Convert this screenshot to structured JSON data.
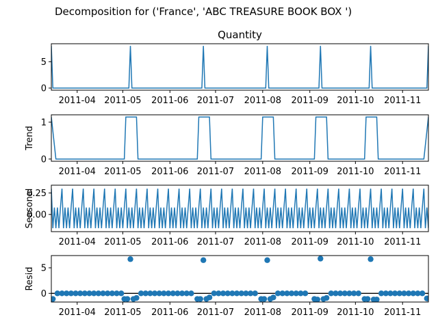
{
  "suptitle": "Decomposition for ('France', 'ABC TREASURE BOOK BOX ')",
  "colors": {
    "series": "#1f77b4",
    "axis": "#000000",
    "zero_line": "#000000"
  },
  "chart_data": [
    {
      "type": "line",
      "title": "Quantity",
      "ylabel": "",
      "xlim": [
        "2011-03-15",
        "2011-11-18"
      ],
      "ylim": [
        -0.4,
        8.4
      ],
      "yticks": [
        0,
        5
      ],
      "xticks": [
        "2011-04-01",
        "2011-05-01",
        "2011-06-01",
        "2011-07-01",
        "2011-08-01",
        "2011-09-01",
        "2011-10-01",
        "2011-11-01"
      ],
      "xtick_labels": [
        "2011-04",
        "2011-05",
        "2011-06",
        "2011-07",
        "2011-08",
        "2011-09",
        "2011-10",
        "2011-11"
      ],
      "spikes": [
        "2011-03-15",
        "2011-05-06",
        "2011-06-23",
        "2011-08-04",
        "2011-09-08",
        "2011-10-11",
        "2011-11-18"
      ],
      "spike_value": 8,
      "base_value": 0
    },
    {
      "type": "line",
      "title": "",
      "ylabel": "Trend",
      "xlim": [
        "2011-03-15",
        "2011-11-18"
      ],
      "ylim": [
        -0.06,
        1.2
      ],
      "yticks": [
        0,
        1
      ],
      "xticks": [
        "2011-04-01",
        "2011-05-01",
        "2011-06-01",
        "2011-07-01",
        "2011-08-01",
        "2011-09-01",
        "2011-10-01",
        "2011-11-01"
      ],
      "xtick_labels": [
        "2011-04",
        "2011-05",
        "2011-06",
        "2011-07",
        "2011-08",
        "2011-09",
        "2011-10",
        "2011-11"
      ],
      "plateaus": [
        [
          "2011-05-03",
          "2011-05-10"
        ],
        [
          "2011-06-20",
          "2011-06-27"
        ],
        [
          "2011-08-01",
          "2011-08-08"
        ],
        [
          "2011-09-05",
          "2011-09-12"
        ],
        [
          "2011-10-08",
          "2011-10-15"
        ]
      ],
      "plateau_value": 1.14,
      "base_value": 0,
      "edges": [
        [
          "2011-03-15",
          1.14
        ],
        [
          "2011-03-18",
          0
        ],
        [
          "2011-11-15",
          0
        ],
        [
          "2011-11-18",
          1.14
        ]
      ]
    },
    {
      "type": "line",
      "title": "",
      "ylabel": "Seasonal",
      "xlim": [
        "2011-03-15",
        "2011-11-18"
      ],
      "ylim": [
        -0.2,
        0.34
      ],
      "yticks": [
        0.25,
        0.0
      ],
      "ytick_labels": [
        "0.25",
        "0.00"
      ],
      "xticks": [
        "2011-04-01",
        "2011-05-01",
        "2011-06-01",
        "2011-07-01",
        "2011-08-01",
        "2011-09-01",
        "2011-10-01",
        "2011-11-01"
      ],
      "xtick_labels": [
        "2011-04",
        "2011-05",
        "2011-06",
        "2011-07",
        "2011-08",
        "2011-09",
        "2011-10",
        "2011-11"
      ],
      "start": "2011-03-15",
      "period_days": 7,
      "pattern": [
        0.3,
        -0.16,
        0.08,
        -0.16,
        0.08,
        -0.16,
        0.08
      ]
    },
    {
      "type": "scatter",
      "title": "",
      "ylabel": "Resid",
      "xlim": [
        "2011-03-15",
        "2011-11-18"
      ],
      "ylim": [
        -1.7,
        7.4
      ],
      "yticks": [
        0,
        5
      ],
      "xticks": [
        "2011-04-01",
        "2011-05-01",
        "2011-06-01",
        "2011-07-01",
        "2011-08-01",
        "2011-09-01",
        "2011-10-01",
        "2011-11-01"
      ],
      "xtick_labels": [
        "2011-04",
        "2011-05",
        "2011-06",
        "2011-07",
        "2011-08",
        "2011-09",
        "2011-10",
        "2011-11"
      ],
      "zero_line": 0,
      "points": [
        [
          "2011-03-16",
          -1.1
        ],
        [
          "2011-03-19",
          0
        ],
        [
          "2011-03-22",
          0
        ],
        [
          "2011-03-25",
          0
        ],
        [
          "2011-03-28",
          0
        ],
        [
          "2011-03-31",
          0
        ],
        [
          "2011-04-03",
          0
        ],
        [
          "2011-04-06",
          0
        ],
        [
          "2011-04-09",
          0
        ],
        [
          "2011-04-12",
          0
        ],
        [
          "2011-04-15",
          0
        ],
        [
          "2011-04-18",
          0
        ],
        [
          "2011-04-21",
          0
        ],
        [
          "2011-04-24",
          0
        ],
        [
          "2011-04-27",
          0
        ],
        [
          "2011-04-30",
          0
        ],
        [
          "2011-05-02",
          -1.1
        ],
        [
          "2011-05-04",
          -1.1
        ],
        [
          "2011-05-06",
          6.7
        ],
        [
          "2011-05-08",
          -1.1
        ],
        [
          "2011-05-10",
          -0.9
        ],
        [
          "2011-05-13",
          0
        ],
        [
          "2011-05-16",
          0
        ],
        [
          "2011-05-19",
          0
        ],
        [
          "2011-05-22",
          0
        ],
        [
          "2011-05-25",
          0
        ],
        [
          "2011-05-28",
          0
        ],
        [
          "2011-05-31",
          0
        ],
        [
          "2011-06-03",
          0
        ],
        [
          "2011-06-06",
          0
        ],
        [
          "2011-06-09",
          0
        ],
        [
          "2011-06-12",
          0
        ],
        [
          "2011-06-15",
          0
        ],
        [
          "2011-06-19",
          -1.1
        ],
        [
          "2011-06-21",
          -1.1
        ],
        [
          "2011-06-23",
          6.5
        ],
        [
          "2011-06-25",
          -1.1
        ],
        [
          "2011-06-27",
          -0.8
        ],
        [
          "2011-06-30",
          0
        ],
        [
          "2011-07-03",
          0
        ],
        [
          "2011-07-06",
          0
        ],
        [
          "2011-07-09",
          0
        ],
        [
          "2011-07-12",
          0
        ],
        [
          "2011-07-15",
          0
        ],
        [
          "2011-07-18",
          0
        ],
        [
          "2011-07-21",
          0
        ],
        [
          "2011-07-24",
          0
        ],
        [
          "2011-07-27",
          0
        ],
        [
          "2011-07-31",
          -1.1
        ],
        [
          "2011-08-02",
          -1.1
        ],
        [
          "2011-08-04",
          6.5
        ],
        [
          "2011-08-06",
          -1.1
        ],
        [
          "2011-08-08",
          -0.8
        ],
        [
          "2011-08-11",
          0
        ],
        [
          "2011-08-14",
          0
        ],
        [
          "2011-08-17",
          0
        ],
        [
          "2011-08-20",
          0
        ],
        [
          "2011-08-23",
          0
        ],
        [
          "2011-08-26",
          0
        ],
        [
          "2011-08-29",
          0
        ],
        [
          "2011-09-04",
          -1.1
        ],
        [
          "2011-09-06",
          -1.2
        ],
        [
          "2011-09-08",
          6.8
        ],
        [
          "2011-09-10",
          -1.1
        ],
        [
          "2011-09-12",
          -0.9
        ],
        [
          "2011-09-15",
          0
        ],
        [
          "2011-09-18",
          0
        ],
        [
          "2011-09-21",
          0
        ],
        [
          "2011-09-24",
          0
        ],
        [
          "2011-09-27",
          0
        ],
        [
          "2011-09-30",
          0
        ],
        [
          "2011-10-03",
          0
        ],
        [
          "2011-10-07",
          -1.1
        ],
        [
          "2011-10-09",
          -1.1
        ],
        [
          "2011-10-11",
          6.7
        ],
        [
          "2011-10-13",
          -1.2
        ],
        [
          "2011-10-15",
          -1.2
        ],
        [
          "2011-10-18",
          0
        ],
        [
          "2011-10-21",
          0
        ],
        [
          "2011-10-24",
          0
        ],
        [
          "2011-10-27",
          0
        ],
        [
          "2011-10-30",
          0
        ],
        [
          "2011-11-02",
          0
        ],
        [
          "2011-11-05",
          0
        ],
        [
          "2011-11-08",
          0
        ],
        [
          "2011-11-11",
          0
        ],
        [
          "2011-11-14",
          0
        ],
        [
          "2011-11-17",
          -1.0
        ]
      ]
    }
  ]
}
